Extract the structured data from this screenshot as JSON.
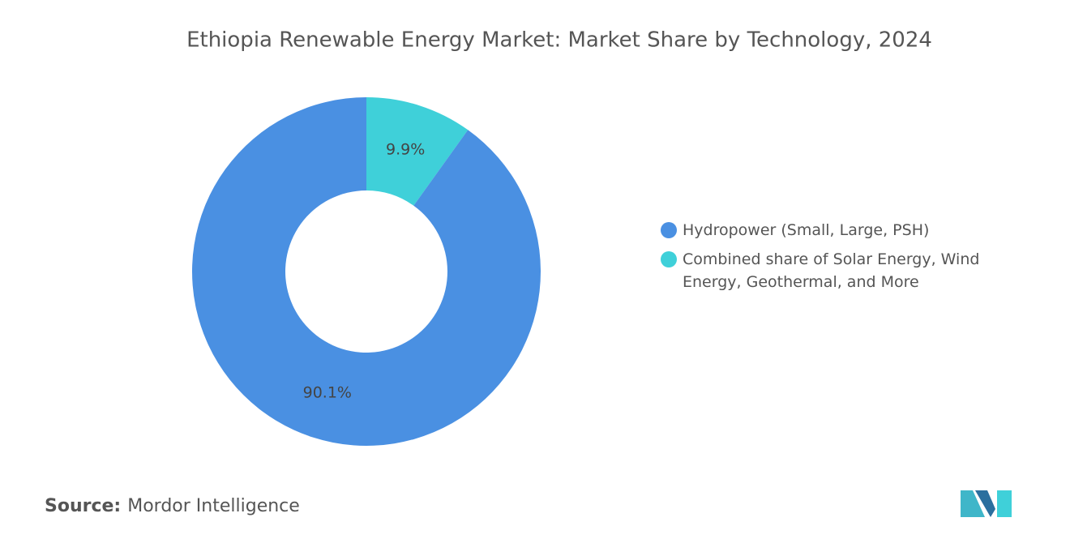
{
  "chart_data": {
    "type": "donut",
    "title": "Ethiopia Renewable Energy Market: Market Share by Technology, 2024",
    "series": [
      {
        "name": "Hydropower (Small, Large, PSH)",
        "color": "#4a90e2",
        "values": [
          90.1
        ],
        "value_labels": [
          "90.1%"
        ]
      },
      {
        "name": "Combined share of Solar Energy, Wind Energy, Geothermal, and More",
        "color": "#3fd0d9",
        "values": [
          9.9
        ],
        "value_labels": [
          "9.9%"
        ]
      }
    ],
    "legend": "right"
  },
  "source": {
    "label": "Source:",
    "text": "Mordor Intelligence"
  }
}
